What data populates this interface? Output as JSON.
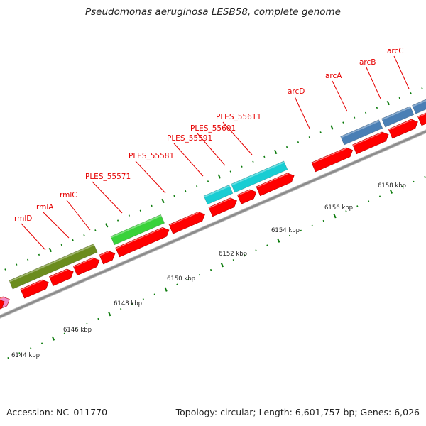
{
  "title": "Pseudomonas aeruginosa LESB58, complete genome",
  "footer": {
    "accession": "Accession: NC_011770",
    "summary": "Topology: circular; Length: 6,601,757 bp; Genes: 6,026"
  },
  "colors": {
    "background": "#ffffff",
    "backbone": "#8c8c8c",
    "gene_cds": "#ff0000",
    "label": "#e60000",
    "tick": "#0a7a0a",
    "olive_cluster": "#6b8c1e",
    "green_cluster": "#39d23a",
    "cyan_cluster": "#19cdd3",
    "blue_cluster": "#4a7fb5",
    "pink_marker": "#f08cc8"
  },
  "scale_labels": [
    "6144 kbp",
    "6146 kbp",
    "6148 kbp",
    "6150 kbp",
    "6152 kbp",
    "6154 kbp",
    "6156 kbp",
    "6158 kbp"
  ],
  "gene_labels": [
    "rmlD",
    "rmlA",
    "rmlC",
    "PLES_55571",
    "PLES_55581",
    "PLES_55591",
    "PLES_55601",
    "PLES_55611",
    "arcD",
    "arcA",
    "arcB",
    "arcC"
  ],
  "clusters": [
    {
      "name": "olive-cluster",
      "color": "#6b8c1e"
    },
    {
      "name": "green-cluster",
      "color": "#39d23a"
    },
    {
      "name": "cyan-cluster",
      "color": "#19cdd3"
    },
    {
      "name": "blue-cluster",
      "color": "#4a7fb5"
    }
  ]
}
